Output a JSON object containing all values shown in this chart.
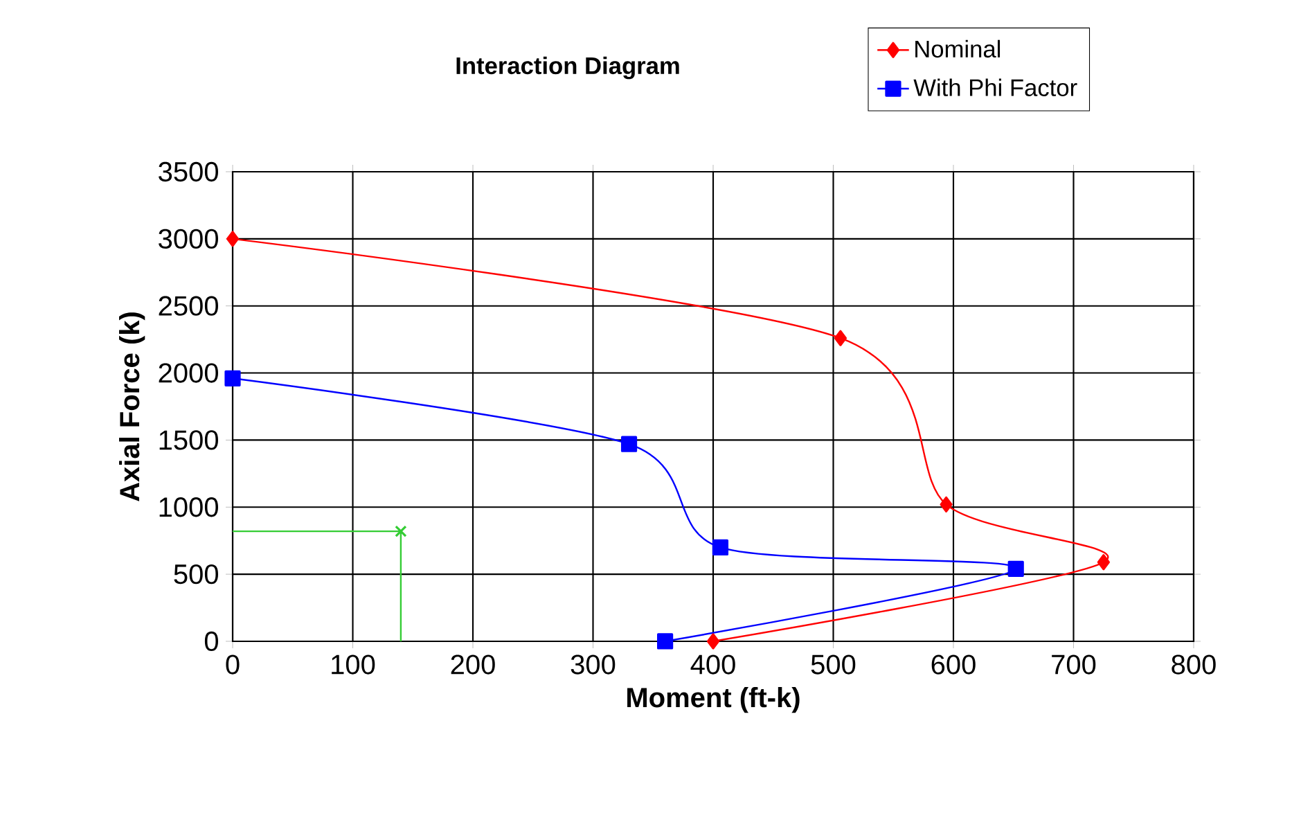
{
  "chart_data": {
    "type": "line",
    "title": "Interaction Diagram",
    "xlabel": "Moment (ft-k)",
    "ylabel": "Axial Force (k)",
    "xlim": [
      0,
      800
    ],
    "xticks": [
      0,
      100,
      200,
      300,
      400,
      500,
      600,
      700,
      800
    ],
    "ylim": [
      0,
      3500
    ],
    "yticks": [
      0,
      500,
      1000,
      1500,
      2000,
      2500,
      3000,
      3500
    ],
    "grid": true,
    "legend": "top right",
    "series": [
      {
        "name": "Nominal",
        "color": "#ff0000",
        "marker": "diamond",
        "x": [
          0,
          506,
          594,
          725,
          400
        ],
        "values": [
          3000,
          2260,
          1020,
          590,
          0
        ]
      },
      {
        "name": "With Phi Factor",
        "color": "#0000ff",
        "marker": "square",
        "x": [
          0,
          330,
          406,
          652,
          360
        ],
        "values": [
          1960,
          1470,
          700,
          540,
          0
        ]
      },
      {
        "type": "step",
        "color": "#33cc33",
        "marker": "none",
        "x": [
          0,
          140,
          140
        ],
        "values": [
          820,
          820,
          0
        ]
      },
      {
        "type": "scatter",
        "color": "#33cc33",
        "marker": "cross",
        "x": [
          140
        ],
        "values": [
          820
        ]
      }
    ]
  }
}
